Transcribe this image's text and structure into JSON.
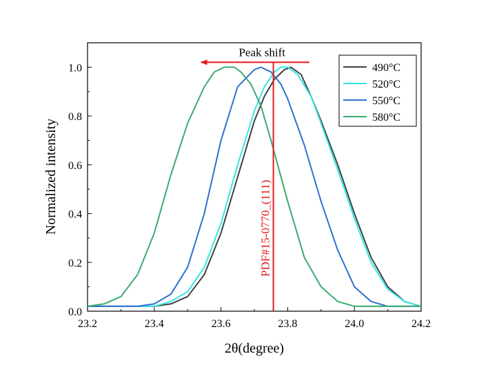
{
  "chart_data": {
    "type": "line",
    "xlabel": "2θ(degree)",
    "ylabel": "Normalized intensity",
    "xlim": [
      23.2,
      24.2
    ],
    "ylim": [
      0.0,
      1.1
    ],
    "xticks": [
      23.2,
      23.4,
      23.6,
      23.8,
      24.0,
      24.2
    ],
    "xtick_labels": [
      "23.2",
      "23.4",
      "23.6",
      "23.8",
      "24.0",
      "24.2"
    ],
    "yticks": [
      0.0,
      0.2,
      0.4,
      0.6,
      0.8,
      1.0
    ],
    "ytick_labels": [
      "0.0",
      "0.2",
      "0.4",
      "0.6",
      "0.8",
      "1.0"
    ],
    "legend_position": "top-right",
    "series": [
      {
        "name": "490°C",
        "color": "#404040",
        "x": [
          23.2,
          23.3,
          23.4,
          23.45,
          23.5,
          23.55,
          23.6,
          23.65,
          23.7,
          23.73,
          23.76,
          23.79,
          23.81,
          23.84,
          23.87,
          23.9,
          23.95,
          24.0,
          24.05,
          24.1,
          24.15,
          24.2
        ],
        "y": [
          0.02,
          0.02,
          0.02,
          0.03,
          0.06,
          0.15,
          0.32,
          0.55,
          0.78,
          0.88,
          0.95,
          0.99,
          1.0,
          0.97,
          0.88,
          0.78,
          0.6,
          0.4,
          0.22,
          0.1,
          0.04,
          0.02
        ]
      },
      {
        "name": "520°C",
        "color": "#33e6e6",
        "x": [
          23.2,
          23.3,
          23.4,
          23.45,
          23.5,
          23.55,
          23.6,
          23.65,
          23.7,
          23.73,
          23.76,
          23.78,
          23.8,
          23.83,
          23.87,
          23.9,
          23.95,
          24.0,
          24.05,
          24.1,
          24.15,
          24.2
        ],
        "y": [
          0.02,
          0.02,
          0.02,
          0.04,
          0.08,
          0.18,
          0.36,
          0.6,
          0.82,
          0.92,
          0.98,
          1.0,
          1.0,
          0.97,
          0.88,
          0.77,
          0.58,
          0.38,
          0.2,
          0.09,
          0.04,
          0.02
        ]
      },
      {
        "name": "550°C",
        "color": "#2f6fd0",
        "x": [
          23.2,
          23.3,
          23.35,
          23.4,
          23.45,
          23.5,
          23.55,
          23.6,
          23.65,
          23.7,
          23.72,
          23.75,
          23.78,
          23.8,
          23.85,
          23.9,
          23.95,
          24.0,
          24.05,
          24.1,
          24.15,
          24.2
        ],
        "y": [
          0.02,
          0.02,
          0.02,
          0.03,
          0.07,
          0.18,
          0.4,
          0.7,
          0.92,
          0.99,
          1.0,
          0.98,
          0.93,
          0.87,
          0.68,
          0.45,
          0.25,
          0.1,
          0.04,
          0.02,
          0.02,
          0.02
        ]
      },
      {
        "name": "580°C",
        "color": "#3aaa6e",
        "x": [
          23.2,
          23.25,
          23.3,
          23.35,
          23.4,
          23.45,
          23.5,
          23.55,
          23.58,
          23.61,
          23.64,
          23.66,
          23.69,
          23.72,
          23.75,
          23.8,
          23.85,
          23.9,
          23.95,
          24.0,
          24.1,
          24.2
        ],
        "y": [
          0.02,
          0.03,
          0.06,
          0.15,
          0.32,
          0.56,
          0.77,
          0.92,
          0.98,
          1.0,
          1.0,
          0.98,
          0.93,
          0.84,
          0.7,
          0.45,
          0.22,
          0.1,
          0.04,
          0.02,
          0.02,
          0.02
        ]
      }
    ],
    "annotations": [
      {
        "kind": "vertical_line",
        "label": "PDF#15-0770_(111)",
        "x": 23.757,
        "color": "#e41a1c"
      },
      {
        "kind": "arrow",
        "label": "Peak shift",
        "color": "#e41a1c",
        "x_from": 23.865,
        "x_to": 23.54,
        "y": 1.02
      }
    ]
  }
}
